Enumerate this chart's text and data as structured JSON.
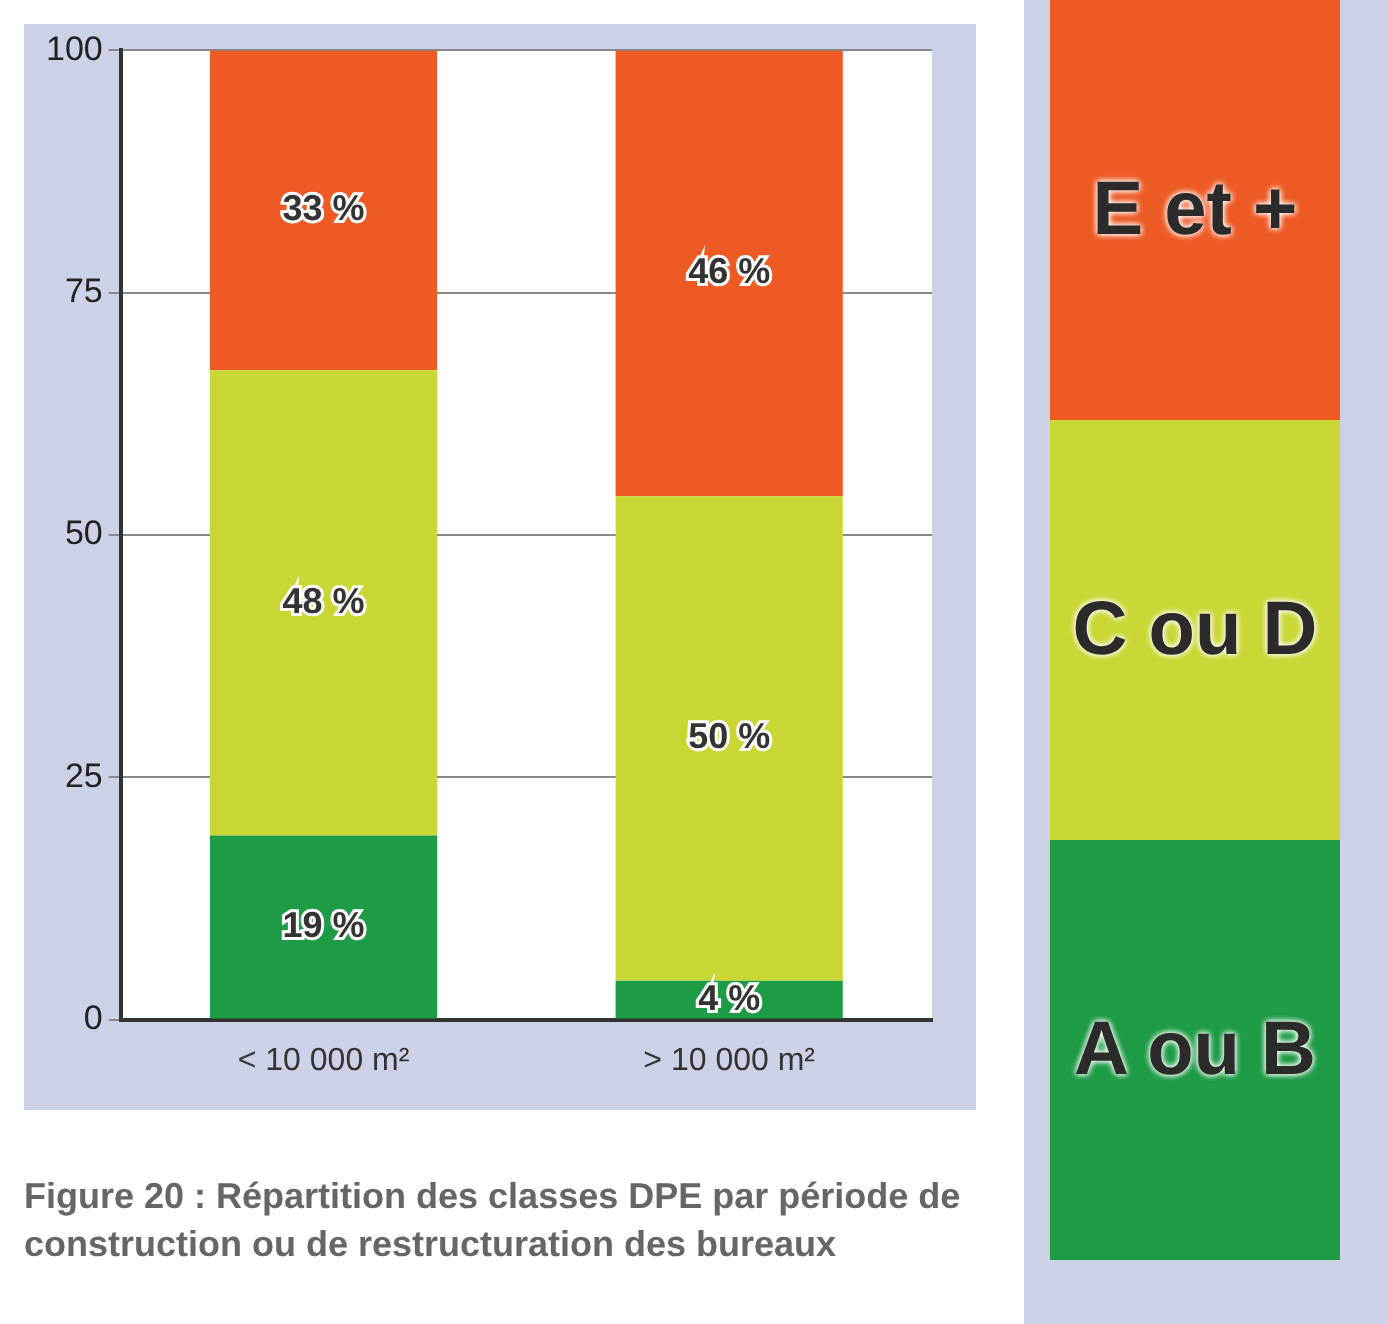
{
  "chart_data": {
    "type": "bar",
    "stacked": true,
    "title": "Figure 20 : Répartition des classes DPE par période de construction ou de restructuration des bureaux",
    "categories": [
      "< 10 000 m²",
      "> 10 000 m²"
    ],
    "series": [
      {
        "name": "A ou B",
        "color": "#1d9b45",
        "values": [
          19,
          4
        ],
        "value_labels": [
          "19 %",
          "4 %"
        ]
      },
      {
        "name": "C ou D",
        "color": "#c8d733",
        "values": [
          48,
          50
        ],
        "value_labels": [
          "48 %",
          "50 %"
        ]
      },
      {
        "name": "E et +",
        "color": "#ee5a24",
        "values": [
          33,
          46
        ],
        "value_labels": [
          "33 %",
          "46 %"
        ]
      }
    ],
    "ylim": [
      0,
      100
    ],
    "yticks": [
      0,
      25,
      50,
      75,
      100
    ],
    "grid": "y",
    "legend": "right"
  }
}
